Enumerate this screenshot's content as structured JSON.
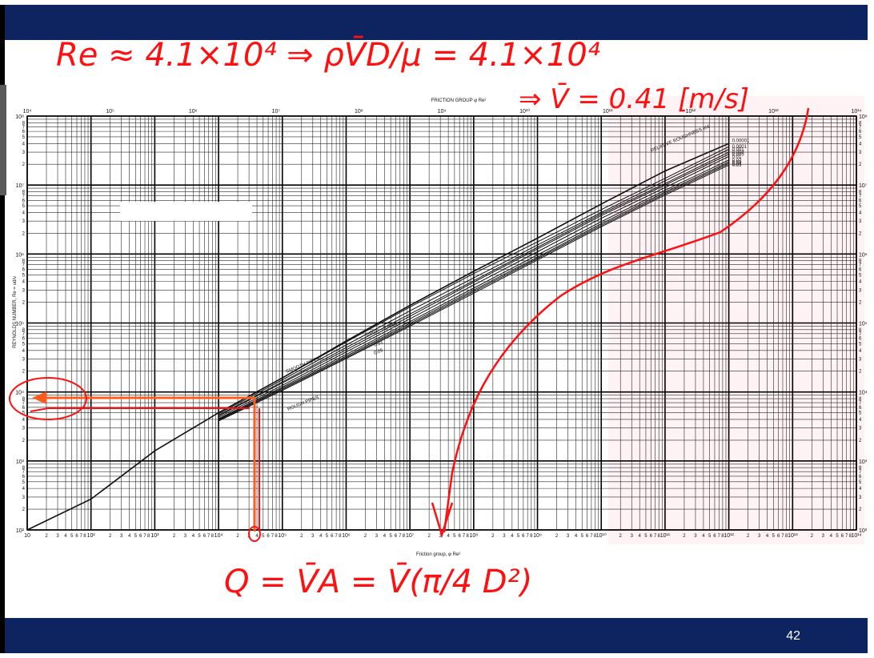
{
  "slide": {
    "page_number": "42",
    "colors": {
      "band": "#0d2461",
      "annotation": "#ff1010",
      "highlight": "#ff5a1f",
      "chart_tint": "#fff2f5"
    }
  },
  "chart_data": {
    "type": "line",
    "title": "FRICTION GROUP φ Re²",
    "xlabel": "Friction group, φ Re²",
    "ylabel": "REYNOLDS NUMBER, Re = ud/ν",
    "x_scale": "log",
    "y_scale": "log",
    "xlim": [
      10,
      100000000000000.0
    ],
    "ylim": [
      100,
      100000000.0
    ],
    "x_decade_labels": [
      "10",
      "10²",
      "10³",
      "10⁴",
      "10⁵",
      "10⁶",
      "10⁷",
      "10⁸",
      "10⁹",
      "10¹⁰",
      "10¹¹",
      "10¹²",
      "10¹³",
      "10¹⁴"
    ],
    "x_top_decade_labels": [
      "10⁴",
      "10⁵",
      "10⁶",
      "10⁷",
      "10⁸",
      "10⁹",
      "10¹⁰",
      "10¹¹",
      "10¹²",
      "10¹³",
      "10¹⁴"
    ],
    "y_decade_labels": [
      "10²",
      "10³",
      "10⁴",
      "10⁵",
      "10⁶",
      "10⁷",
      "10⁸"
    ],
    "minor_tick_labels": [
      "2",
      "3",
      "4",
      "5",
      "6",
      "7",
      "8"
    ],
    "grid": true,
    "legend_title": "RELATIVE ROUGHNESS e/d",
    "series": [
      {
        "name": "0.00001",
        "points": [
          [
            10,
            100
          ],
          [
            100,
            280
          ],
          [
            1000,
            1400
          ],
          [
            10000.0,
            5000
          ],
          [
            100000.0,
            16000
          ],
          [
            1000000.0,
            55000
          ],
          [
            10000000.0,
            180000
          ],
          [
            100000000.0,
            560000
          ],
          [
            1000000000.0,
            1700000
          ],
          [
            10000000000.0,
            5300000
          ],
          [
            100000000000.0,
            16000000
          ],
          [
            1000000000000.0,
            40000000
          ]
        ]
      },
      {
        "name": "0.0001",
        "points": [
          [
            10000.0,
            5000
          ],
          [
            100000.0,
            16000
          ],
          [
            1000000.0,
            53000
          ],
          [
            10000000.0,
            170000
          ],
          [
            100000000.0,
            520000
          ],
          [
            1000000000.0,
            1500000
          ],
          [
            10000000000.0,
            4400000
          ],
          [
            100000000000.0,
            12500000
          ],
          [
            1000000000000.0,
            36000000
          ]
        ]
      },
      {
        "name": "0.001",
        "points": [
          [
            10000.0,
            4800
          ],
          [
            100000.0,
            15000
          ],
          [
            1000000.0,
            48000
          ],
          [
            10000000.0,
            150000
          ],
          [
            100000000.0,
            450000
          ],
          [
            1000000000.0,
            1350000
          ],
          [
            10000000000.0,
            4000000
          ],
          [
            100000000000.0,
            11500000
          ],
          [
            1000000000000.0,
            33000000
          ]
        ]
      },
      {
        "name": "0.003",
        "points": [
          [
            10000.0,
            4600
          ],
          [
            100000.0,
            14000
          ],
          [
            1000000.0,
            44000
          ],
          [
            10000000.0,
            135000
          ],
          [
            100000000.0,
            410000
          ],
          [
            1000000000.0,
            1250000
          ],
          [
            10000000000.0,
            3800000
          ],
          [
            100000000000.0,
            10500000
          ],
          [
            1000000000000.0,
            30000000
          ]
        ]
      },
      {
        "name": "0.005",
        "points": [
          [
            10000.0,
            4500
          ],
          [
            100000.0,
            13500
          ],
          [
            1000000.0,
            41000
          ],
          [
            10000000.0,
            125000
          ],
          [
            100000000.0,
            390000
          ],
          [
            1000000000.0,
            1180000
          ],
          [
            10000000000.0,
            3600000
          ],
          [
            100000000000.0,
            10000000
          ],
          [
            1000000000000.0,
            28000000
          ]
        ]
      },
      {
        "name": "0.01",
        "points": [
          [
            10000.0,
            4300
          ],
          [
            100000.0,
            12500
          ],
          [
            1000000.0,
            38000
          ],
          [
            10000000.0,
            115000
          ],
          [
            100000000.0,
            355000
          ],
          [
            1000000000.0,
            1080000
          ],
          [
            10000000000.0,
            3300000
          ],
          [
            100000000000.0,
            9200000
          ],
          [
            1000000000000.0,
            26000000
          ]
        ]
      },
      {
        "name": "0.02",
        "points": [
          [
            10000.0,
            4100
          ],
          [
            100000.0,
            11800
          ],
          [
            1000000.0,
            35000
          ],
          [
            10000000.0,
            105000
          ],
          [
            100000000.0,
            320000
          ],
          [
            1000000000.0,
            970000
          ],
          [
            10000000000.0,
            2950000
          ],
          [
            100000000000.0,
            8400000
          ],
          [
            1000000000000.0,
            23000000
          ]
        ]
      },
      {
        "name": "0.03",
        "points": [
          [
            10000.0,
            4000
          ],
          [
            100000.0,
            11300
          ],
          [
            1000000.0,
            33000
          ],
          [
            10000000.0,
            99000
          ],
          [
            100000000.0,
            300000
          ],
          [
            1000000000.0,
            900000
          ],
          [
            10000000000.0,
            2750000
          ],
          [
            100000000000.0,
            7900000
          ],
          [
            1000000000000.0,
            21500000
          ]
        ]
      },
      {
        "name": "0.04",
        "points": [
          [
            10000.0,
            3900
          ],
          [
            100000.0,
            10900
          ],
          [
            1000000.0,
            31500
          ],
          [
            10000000.0,
            94000
          ],
          [
            100000000.0,
            285000
          ],
          [
            1000000000.0,
            860000
          ],
          [
            10000000000.0,
            2600000
          ],
          [
            100000000000.0,
            7500000
          ],
          [
            1000000000000.0,
            20500000
          ]
        ]
      },
      {
        "name": "0.05",
        "points": [
          [
            10000.0,
            3800
          ],
          [
            100000.0,
            10500
          ],
          [
            1000000.0,
            30500
          ],
          [
            10000000.0,
            90000
          ],
          [
            100000000.0,
            270000
          ],
          [
            1000000000.0,
            820000
          ],
          [
            10000000000.0,
            2480000
          ],
          [
            100000000000.0,
            7150000
          ],
          [
            1000000000000.0,
            19500000
          ]
        ]
      }
    ],
    "curve_labels": [
      "SMOOTH PIPES",
      "ROUGH PIPES"
    ],
    "inline_roughness_labels": [
      "0.001",
      "0.0001",
      "0.01",
      "0.05"
    ],
    "reading": {
      "x": 35000000,
      "y": 41000
    }
  },
  "annotations": {
    "line1": "Re ≈ 4.1×10⁴ ⇒ ρV̄D/μ = 4.1×10⁴",
    "line2": "⇒ V̄ = 0.41 [m/s]",
    "formula": "Q = V̄A = V̄(π/4 D²)"
  }
}
